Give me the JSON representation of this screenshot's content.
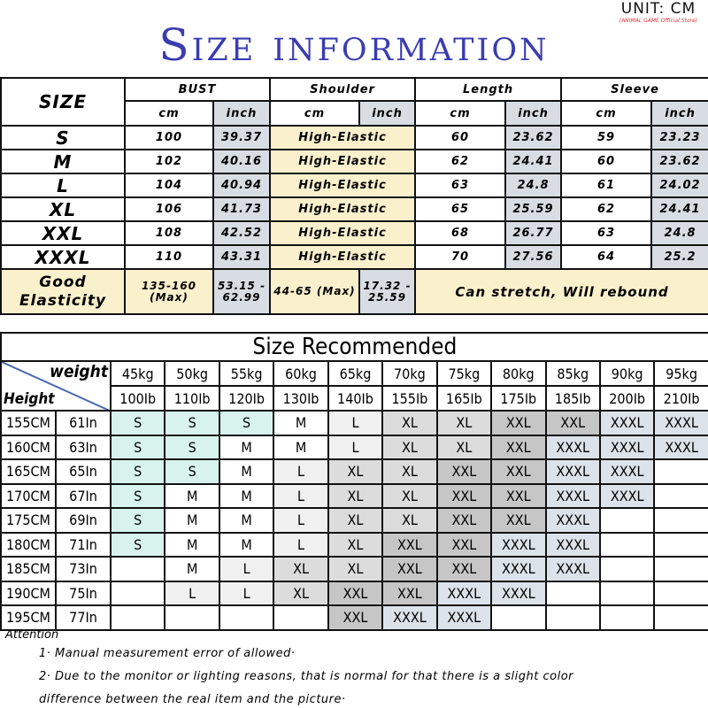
{
  "title": "Size information",
  "unit": "UNIT: CM",
  "store": "(ANIMAL GAME Official Store)",
  "measure_table": {
    "size_header": "SIZE",
    "groups": [
      "BUST",
      "Shoulder",
      "Length",
      "Sleeve"
    ],
    "subheaders": [
      "cm",
      "inch",
      "cm",
      "inch",
      "cm",
      "inch",
      "cm",
      "inch"
    ],
    "rows": [
      {
        "size": "S",
        "bust_cm": "100",
        "bust_in": "39.37",
        "shoulder": "High-Elastic",
        "length_cm": "60",
        "length_in": "23.62",
        "sleeve_cm": "59",
        "sleeve_in": "23.23"
      },
      {
        "size": "M",
        "bust_cm": "102",
        "bust_in": "40.16",
        "shoulder": "High-Elastic",
        "length_cm": "62",
        "length_in": "24.41",
        "sleeve_cm": "60",
        "sleeve_in": "23.62"
      },
      {
        "size": "L",
        "bust_cm": "104",
        "bust_in": "40.94",
        "shoulder": "High-Elastic",
        "length_cm": "63",
        "length_in": "24.8",
        "sleeve_cm": "61",
        "sleeve_in": "24.02"
      },
      {
        "size": "XL",
        "bust_cm": "106",
        "bust_in": "41.73",
        "shoulder": "High-Elastic",
        "length_cm": "65",
        "length_in": "25.59",
        "sleeve_cm": "62",
        "sleeve_in": "24.41"
      },
      {
        "size": "XXL",
        "bust_cm": "108",
        "bust_in": "42.52",
        "shoulder": "High-Elastic",
        "length_cm": "68",
        "length_in": "26.77",
        "sleeve_cm": "63",
        "sleeve_in": "24.8"
      },
      {
        "size": "XXXL",
        "bust_cm": "110",
        "bust_in": "43.31",
        "shoulder": "High-Elastic",
        "length_cm": "70",
        "length_in": "27.56",
        "sleeve_cm": "64",
        "sleeve_in": "25.2"
      }
    ],
    "elasticity": {
      "label": "Good Elasticity",
      "bust_cm": "135-160 (Max)",
      "bust_in": "53.15 - 62.99",
      "shoulder_cm": "44-65 (Max)",
      "shoulder_in": "17.32 - 25.59",
      "note": "Can stretch, Will rebound"
    }
  },
  "recommend": {
    "title": "Size Recommended",
    "weight_label": "weight",
    "height_label": "Height",
    "kg": [
      "45kg",
      "50kg",
      "55kg",
      "60kg",
      "65kg",
      "70kg",
      "75kg",
      "80kg",
      "85kg",
      "90kg",
      "95kg"
    ],
    "lb": [
      "100Ib",
      "110Ib",
      "120Ib",
      "130Ib",
      "140Ib",
      "155Ib",
      "165Ib",
      "175Ib",
      "185Ib",
      "200Ib",
      "210Ib"
    ],
    "rows": [
      {
        "cm": "155CM",
        "in": "61In",
        "sizes": [
          "S",
          "S",
          "S",
          "M",
          "L",
          "XL",
          "XL",
          "XXL",
          "XXL",
          "XXXL",
          "XXXL"
        ]
      },
      {
        "cm": "160CM",
        "in": "63In",
        "sizes": [
          "S",
          "S",
          "M",
          "M",
          "L",
          "XL",
          "XL",
          "XXL",
          "XXXL",
          "XXXL",
          "XXXL"
        ]
      },
      {
        "cm": "165CM",
        "in": "65In",
        "sizes": [
          "S",
          "S",
          "M",
          "L",
          "XL",
          "XL",
          "XXL",
          "XXL",
          "XXXL",
          "XXXL",
          ""
        ]
      },
      {
        "cm": "170CM",
        "in": "67In",
        "sizes": [
          "S",
          "M",
          "M",
          "L",
          "XL",
          "XL",
          "XXL",
          "XXL",
          "XXXL",
          "XXXL",
          ""
        ]
      },
      {
        "cm": "175CM",
        "in": "69In",
        "sizes": [
          "S",
          "M",
          "M",
          "L",
          "XL",
          "XL",
          "XXL",
          "XXL",
          "XXXL",
          "",
          ""
        ]
      },
      {
        "cm": "180CM",
        "in": "71In",
        "sizes": [
          "S",
          "M",
          "M",
          "L",
          "XL",
          "XXL",
          "XXL",
          "XXXL",
          "XXXL",
          "",
          ""
        ]
      },
      {
        "cm": "185CM",
        "in": "73In",
        "sizes": [
          "",
          "M",
          "L",
          "XL",
          "XL",
          "XXL",
          "XXL",
          "XXXL",
          "XXXL",
          "",
          ""
        ]
      },
      {
        "cm": "190CM",
        "in": "75In",
        "sizes": [
          "",
          "L",
          "L",
          "XL",
          "XXL",
          "XXL",
          "XXXL",
          "XXXL",
          "",
          "",
          ""
        ]
      },
      {
        "cm": "195CM",
        "in": "77In",
        "sizes": [
          "",
          "",
          "",
          "",
          "XXL",
          "XXXL",
          "XXXL",
          "",
          "",
          "",
          ""
        ]
      }
    ],
    "colors": {
      "S": "#d8f3ee",
      "M": "#ffffff",
      "L": "#f0f0f0",
      "XL": "#dcdcdc",
      "XXL": "#c6c6c6",
      "XXXL": "#dce2ea",
      "": "#ffffff"
    }
  },
  "attention": {
    "title": "Attention",
    "notes": [
      "1· Manual measurement error of allowed·",
      "2·  Due to the monitor or lighting reasons, that is normal for that there is a slight color",
      "difference between the real item and the picture·"
    ]
  }
}
